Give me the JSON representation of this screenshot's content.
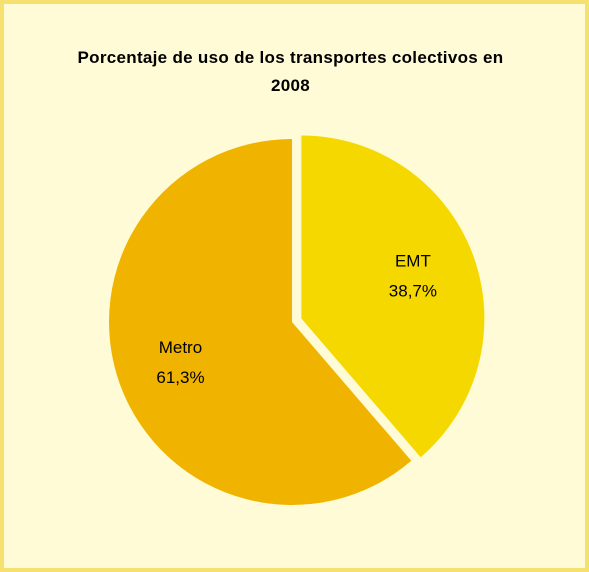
{
  "chart_data": {
    "type": "pie",
    "title": "Porcentaje de uso de los transportes colectivos en 2008",
    "categories": [
      "EMT",
      "Metro"
    ],
    "values": [
      38.7,
      61.3
    ],
    "value_labels": [
      "38,7%",
      "61,3%"
    ],
    "colors": [
      "#F5D800",
      "#F0B400"
    ],
    "exploded": [
      true,
      false
    ]
  }
}
